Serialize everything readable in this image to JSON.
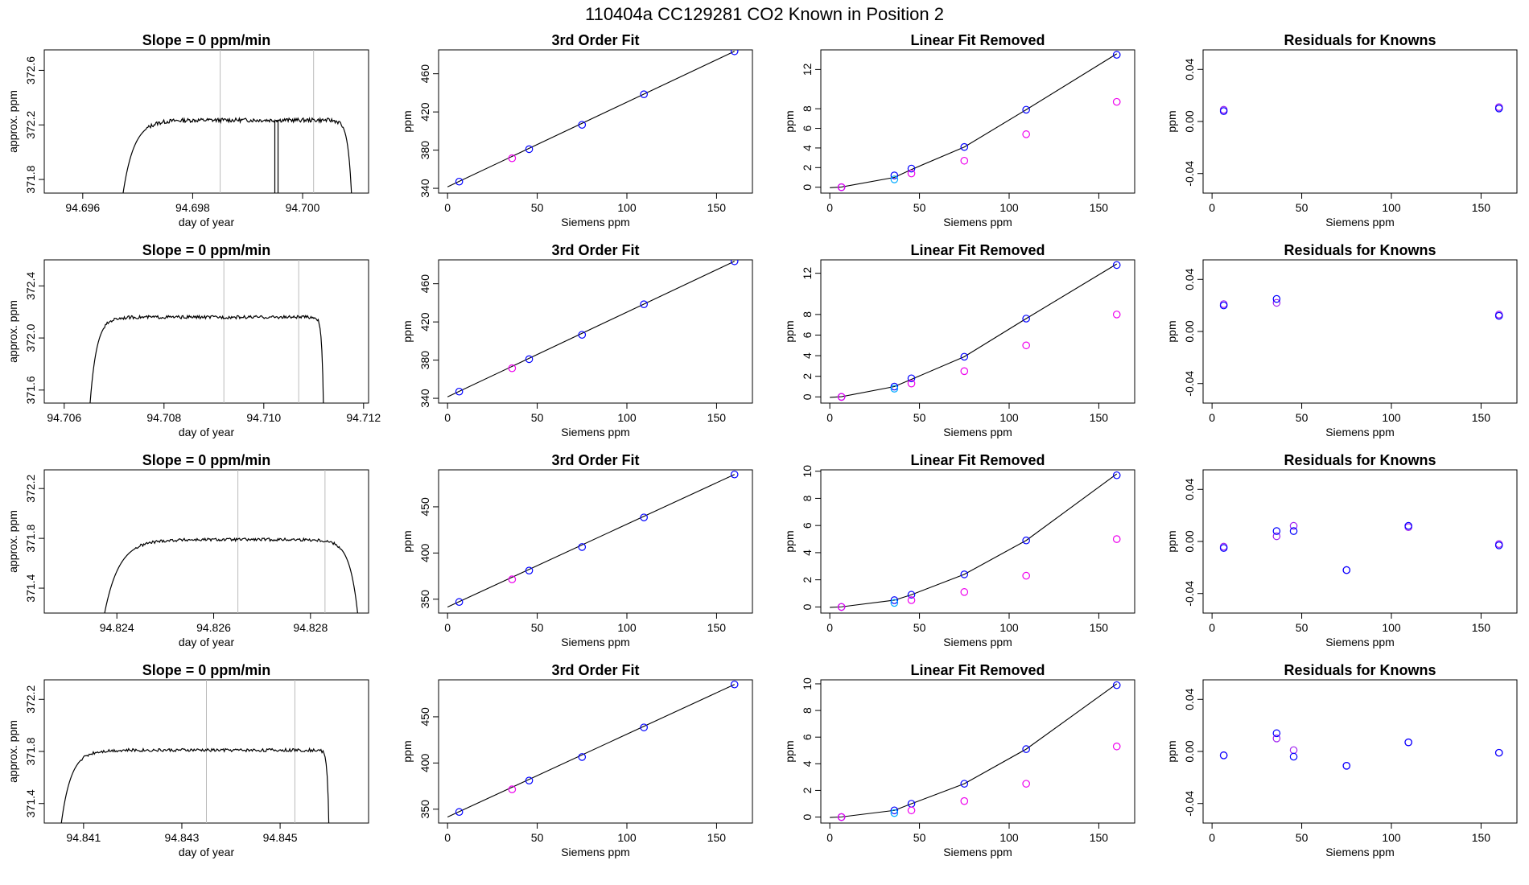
{
  "figure": {
    "title": "110404a      CC129281    CO2 Known in Position  2",
    "colors": {
      "line": "#000000",
      "vline": "#bbbbbb",
      "blue": "#0000ff",
      "violet": "#a020f0",
      "magenta": "#ee00ee",
      "cyan": "#00aaff",
      "purple": "#7a00ff",
      "red": "#ff0000"
    }
  },
  "chart_data": [
    {
      "type": "line",
      "row": 0,
      "col": 0,
      "title": "Slope =  0  ppm/min",
      "xlabel": "day of year",
      "ylabel": "approx. ppm",
      "xlim": [
        94.6953,
        94.7012
      ],
      "ylim": [
        371.7,
        372.75
      ],
      "xticks": [
        94.696,
        94.698,
        94.7
      ],
      "xticklabels": [
        "94.696",
        "94.698",
        "94.700"
      ],
      "yticks": [
        371.8,
        372.2,
        372.6
      ],
      "yticklabels": [
        "371.8",
        "372.2",
        "372.6"
      ],
      "vlines": [
        94.6985,
        94.7002
      ],
      "trace": {
        "x0": 94.6967,
        "x1": 94.7009,
        "rise": 0.0006,
        "fall": 0.0002,
        "level": 372.235,
        "start": 371.6,
        "end": 371.6,
        "noise": 0.015,
        "dip": 94.6995
      }
    },
    {
      "type": "scatter",
      "row": 0,
      "col": 1,
      "title": "3rd Order Fit",
      "xlabel": "Siemens ppm",
      "ylabel": "ppm",
      "xlim": [
        -5,
        170
      ],
      "ylim": [
        335,
        485
      ],
      "xticks": [
        0,
        50,
        100,
        150
      ],
      "xticklabels": [
        "0",
        "50",
        "100",
        "150"
      ],
      "yticks": [
        340,
        380,
        420,
        460
      ],
      "yticklabels": [
        "340",
        "380",
        "420",
        "460"
      ],
      "series": [
        {
          "color": "blue",
          "x": [
            6.5,
            45.5,
            75,
            109.5,
            160
          ],
          "y": [
            347,
            381,
            406.5,
            438.5,
            483.5
          ]
        },
        {
          "color": "magenta",
          "x": [
            36
          ],
          "y": [
            371.5
          ]
        }
      ],
      "fit": {
        "x": [
          0,
          160
        ],
        "y": [
          341.5,
          483.5
        ]
      }
    },
    {
      "type": "scatter",
      "row": 0,
      "col": 2,
      "title": "Linear Fit Removed",
      "xlabel": "Siemens ppm",
      "ylabel": "ppm",
      "xlim": [
        -5,
        170
      ],
      "ylim": [
        -0.6,
        14
      ],
      "xticks": [
        0,
        50,
        100,
        150
      ],
      "xticklabels": [
        "0",
        "50",
        "100",
        "150"
      ],
      "yticks": [
        0,
        2,
        4,
        6,
        8,
        12
      ],
      "yticklabels": [
        "0",
        "2",
        "4",
        "6",
        "8",
        "12"
      ],
      "series": [
        {
          "color": "blue",
          "x": [
            6.5,
            36,
            45.5,
            75,
            109.5,
            160
          ],
          "y": [
            0,
            1.2,
            1.9,
            4.1,
            7.9,
            13.5
          ]
        },
        {
          "color": "cyan",
          "x": [
            36
          ],
          "y": [
            0.8
          ]
        },
        {
          "color": "magenta",
          "x": [
            6.5,
            45.5,
            75,
            109.5,
            160
          ],
          "y": [
            0,
            1.4,
            2.7,
            5.4,
            8.7
          ]
        }
      ],
      "fit": {
        "x": [
          0,
          6.5,
          36,
          45.5,
          75,
          109.5,
          160
        ],
        "y": [
          -0.05,
          0.02,
          1.0,
          1.8,
          4.1,
          7.9,
          13.6
        ]
      }
    },
    {
      "type": "scatter",
      "row": 0,
      "col": 3,
      "title": "Residuals for Knowns",
      "xlabel": "Siemens ppm",
      "ylabel": "ppm",
      "xlim": [
        -5,
        170
      ],
      "ylim": [
        -0.055,
        0.055
      ],
      "xticks": [
        0,
        50,
        100,
        150
      ],
      "xticklabels": [
        "0",
        "50",
        "100",
        "150"
      ],
      "yticks": [
        -0.04,
        0.0,
        0.04
      ],
      "yticklabels": [
        "-0.04",
        "0.00",
        "0.04"
      ],
      "series": [
        {
          "color": "violet",
          "x": [
            6.5,
            160
          ],
          "y": [
            0.009,
            0.011
          ]
        },
        {
          "color": "blue",
          "x": [
            6.5,
            160
          ],
          "y": [
            0.008,
            0.01
          ]
        }
      ]
    },
    {
      "type": "line",
      "row": 1,
      "col": 0,
      "title": "Slope =  0  ppm/min",
      "xlabel": "day of year",
      "ylabel": "approx. ppm",
      "xlim": [
        94.7056,
        94.7121
      ],
      "ylim": [
        371.5,
        372.6
      ],
      "xticks": [
        94.706,
        94.708,
        94.71,
        94.712
      ],
      "xticklabels": [
        "94.706",
        "94.708",
        "94.710",
        "94.712"
      ],
      "yticks": [
        371.6,
        372.0,
        372.4
      ],
      "yticklabels": [
        "371.6",
        "372.0",
        "372.4"
      ],
      "vlines": [
        94.7092,
        94.7107
      ],
      "trace": {
        "x0": 94.7065,
        "x1": 94.7112,
        "rise": 0.0004,
        "fall": 0.0001,
        "level": 372.16,
        "start": 371.4,
        "end": 371.4,
        "noise": 0.012
      }
    },
    {
      "type": "scatter",
      "row": 1,
      "col": 1,
      "title": "3rd Order Fit",
      "xlabel": "Siemens ppm",
      "ylabel": "ppm",
      "xlim": [
        -5,
        170
      ],
      "ylim": [
        335,
        485
      ],
      "xticks": [
        0,
        50,
        100,
        150
      ],
      "xticklabels": [
        "0",
        "50",
        "100",
        "150"
      ],
      "yticks": [
        340,
        380,
        420,
        460
      ],
      "yticklabels": [
        "340",
        "380",
        "420",
        "460"
      ],
      "series": [
        {
          "color": "blue",
          "x": [
            6.5,
            45.5,
            75,
            109.5,
            160
          ],
          "y": [
            347,
            381,
            406.5,
            438.5,
            483.5
          ]
        },
        {
          "color": "magenta",
          "x": [
            36
          ],
          "y": [
            371.5
          ]
        }
      ],
      "fit": {
        "x": [
          0,
          160
        ],
        "y": [
          341.5,
          483.5
        ]
      }
    },
    {
      "type": "scatter",
      "row": 1,
      "col": 2,
      "title": "Linear Fit Removed",
      "xlabel": "Siemens ppm",
      "ylabel": "ppm",
      "xlim": [
        -5,
        170
      ],
      "ylim": [
        -0.6,
        13.3
      ],
      "xticks": [
        0,
        50,
        100,
        150
      ],
      "xticklabels": [
        "0",
        "50",
        "100",
        "150"
      ],
      "yticks": [
        0,
        2,
        4,
        6,
        8,
        12
      ],
      "yticklabels": [
        "0",
        "2",
        "4",
        "6",
        "8",
        "12"
      ],
      "series": [
        {
          "color": "blue",
          "x": [
            6.5,
            36,
            45.5,
            75,
            109.5,
            160
          ],
          "y": [
            0,
            1.0,
            1.8,
            3.9,
            7.6,
            12.8
          ]
        },
        {
          "color": "cyan",
          "x": [
            36
          ],
          "y": [
            0.8
          ]
        },
        {
          "color": "magenta",
          "x": [
            6.5,
            45.5,
            75,
            109.5,
            160
          ],
          "y": [
            0,
            1.3,
            2.5,
            5.0,
            8.0
          ]
        }
      ],
      "fit": {
        "x": [
          0,
          6.5,
          36,
          45.5,
          75,
          109.5,
          160
        ],
        "y": [
          -0.05,
          0.02,
          1.0,
          1.7,
          3.9,
          7.6,
          12.9
        ]
      }
    },
    {
      "type": "scatter",
      "row": 1,
      "col": 3,
      "title": "Residuals for Knowns",
      "xlabel": "Siemens ppm",
      "ylabel": "ppm",
      "xlim": [
        -5,
        170
      ],
      "ylim": [
        -0.055,
        0.055
      ],
      "xticks": [
        0,
        50,
        100,
        150
      ],
      "xticklabels": [
        "0",
        "50",
        "100",
        "150"
      ],
      "yticks": [
        -0.04,
        0.0,
        0.04
      ],
      "yticklabels": [
        "-0.04",
        "0.00",
        "0.04"
      ],
      "series": [
        {
          "color": "violet",
          "x": [
            6.5,
            36,
            160
          ],
          "y": [
            0.021,
            0.022,
            0.013
          ]
        },
        {
          "color": "blue",
          "x": [
            6.5,
            36,
            160
          ],
          "y": [
            0.02,
            0.025,
            0.012
          ]
        }
      ]
    },
    {
      "type": "line",
      "row": 2,
      "col": 0,
      "title": "Slope =  0  ppm/min",
      "xlabel": "day of year",
      "ylabel": "approx. ppm",
      "xlim": [
        94.8225,
        94.8292
      ],
      "ylim": [
        371.2,
        372.35
      ],
      "xticks": [
        94.824,
        94.826,
        94.828
      ],
      "xticklabels": [
        "94.824",
        "94.826",
        "94.828"
      ],
      "yticks": [
        371.4,
        371.8,
        372.2
      ],
      "yticklabels": [
        "371.4",
        "371.8",
        "372.2"
      ],
      "vlines": [
        94.8265,
        94.8283
      ],
      "trace": {
        "x0": 94.8237,
        "x1": 94.829,
        "rise": 0.0009,
        "fall": 0.0005,
        "level": 371.79,
        "start": 371.1,
        "end": 371.1,
        "noise": 0.012
      }
    },
    {
      "type": "scatter",
      "row": 2,
      "col": 1,
      "title": "3rd Order Fit",
      "xlabel": "Siemens ppm",
      "ylabel": "ppm",
      "xlim": [
        -5,
        170
      ],
      "ylim": [
        335,
        490
      ],
      "xticks": [
        0,
        50,
        100,
        150
      ],
      "xticklabels": [
        "0",
        "50",
        "100",
        "150"
      ],
      "yticks": [
        350,
        400,
        450
      ],
      "yticklabels": [
        "350",
        "400",
        "450"
      ],
      "series": [
        {
          "color": "blue",
          "x": [
            6.5,
            45.5,
            75,
            109.5,
            160
          ],
          "y": [
            347,
            381,
            406.5,
            438.5,
            485
          ]
        },
        {
          "color": "magenta",
          "x": [
            36
          ],
          "y": [
            371.5
          ]
        }
      ],
      "fit": {
        "x": [
          0,
          160
        ],
        "y": [
          341.5,
          485
        ]
      }
    },
    {
      "type": "scatter",
      "row": 2,
      "col": 2,
      "title": "Linear Fit Removed",
      "xlabel": "Siemens ppm",
      "ylabel": "ppm",
      "xlim": [
        -5,
        170
      ],
      "ylim": [
        -0.45,
        10.1
      ],
      "xticks": [
        0,
        50,
        100,
        150
      ],
      "xticklabels": [
        "0",
        "50",
        "100",
        "150"
      ],
      "yticks": [
        0,
        2,
        4,
        6,
        8,
        10
      ],
      "yticklabels": [
        "0",
        "2",
        "4",
        "6",
        "8",
        "10"
      ],
      "series": [
        {
          "color": "blue",
          "x": [
            6.5,
            36,
            45.5,
            75,
            109.5,
            160
          ],
          "y": [
            0,
            0.5,
            0.9,
            2.4,
            4.9,
            9.7
          ]
        },
        {
          "color": "cyan",
          "x": [
            36
          ],
          "y": [
            0.3
          ]
        },
        {
          "color": "magenta",
          "x": [
            6.5,
            45.5,
            75,
            109.5,
            160
          ],
          "y": [
            0,
            0.5,
            1.1,
            2.3,
            5.0
          ]
        }
      ],
      "fit": {
        "x": [
          0,
          6.5,
          36,
          45.5,
          75,
          109.5,
          160
        ],
        "y": [
          -0.03,
          0.01,
          0.5,
          0.9,
          2.4,
          4.9,
          9.8
        ]
      }
    },
    {
      "type": "scatter",
      "row": 2,
      "col": 3,
      "title": "Residuals for Knowns",
      "xlabel": "Siemens ppm",
      "ylabel": "ppm",
      "xlim": [
        -5,
        170
      ],
      "ylim": [
        -0.055,
        0.055
      ],
      "xticks": [
        0,
        50,
        100,
        150
      ],
      "xticklabels": [
        "0",
        "50",
        "100",
        "150"
      ],
      "yticks": [
        -0.04,
        0.0,
        0.04
      ],
      "yticklabels": [
        "-0.04",
        "0.00",
        "0.04"
      ],
      "series": [
        {
          "color": "violet",
          "x": [
            6.5,
            36,
            45.5,
            75,
            109.5,
            160
          ],
          "y": [
            -0.004,
            0.004,
            0.012,
            -0.022,
            0.011,
            -0.002
          ]
        },
        {
          "color": "blue",
          "x": [
            6.5,
            36,
            45.5,
            75,
            109.5,
            160
          ],
          "y": [
            -0.005,
            0.008,
            0.008,
            -0.022,
            0.012,
            -0.003
          ]
        }
      ]
    },
    {
      "type": "line",
      "row": 3,
      "col": 0,
      "title": "Slope =  0  ppm/min",
      "xlabel": "day of year",
      "ylabel": "approx. ppm",
      "xlim": [
        94.8402,
        94.8468
      ],
      "ylim": [
        371.25,
        372.35
      ],
      "xticks": [
        94.841,
        94.843,
        94.845
      ],
      "xticklabels": [
        "94.841",
        "94.843",
        "94.845"
      ],
      "yticks": [
        371.4,
        371.8,
        372.2
      ],
      "yticklabels": [
        "371.4",
        "371.8",
        "372.2"
      ],
      "vlines": [
        94.8435,
        94.8453
      ],
      "trace": {
        "x0": 94.8405,
        "x1": 94.846,
        "rise": 0.0006,
        "fall": 0.0001,
        "level": 371.81,
        "start": 371.1,
        "end": 371.1,
        "noise": 0.012
      }
    },
    {
      "type": "scatter",
      "row": 3,
      "col": 1,
      "title": "3rd Order Fit",
      "xlabel": "Siemens ppm",
      "ylabel": "ppm",
      "xlim": [
        -5,
        170
      ],
      "ylim": [
        335,
        490
      ],
      "xticks": [
        0,
        50,
        100,
        150
      ],
      "xticklabels": [
        "0",
        "50",
        "100",
        "150"
      ],
      "yticks": [
        350,
        400,
        450
      ],
      "yticklabels": [
        "350",
        "400",
        "450"
      ],
      "series": [
        {
          "color": "blue",
          "x": [
            6.5,
            45.5,
            75,
            109.5,
            160
          ],
          "y": [
            347,
            381,
            406.5,
            438.5,
            485
          ]
        },
        {
          "color": "magenta",
          "x": [
            36
          ],
          "y": [
            371.5
          ]
        }
      ],
      "fit": {
        "x": [
          0,
          160
        ],
        "y": [
          341.5,
          485
        ]
      }
    },
    {
      "type": "scatter",
      "row": 3,
      "col": 2,
      "title": "Linear Fit Removed",
      "xlabel": "Siemens ppm",
      "ylabel": "ppm",
      "xlim": [
        -5,
        170
      ],
      "ylim": [
        -0.45,
        10.3
      ],
      "xticks": [
        0,
        50,
        100,
        150
      ],
      "xticklabels": [
        "0",
        "50",
        "100",
        "150"
      ],
      "yticks": [
        0,
        2,
        4,
        6,
        8,
        10
      ],
      "yticklabels": [
        "0",
        "2",
        "4",
        "6",
        "8",
        "10"
      ],
      "series": [
        {
          "color": "blue",
          "x": [
            6.5,
            36,
            45.5,
            75,
            109.5,
            160
          ],
          "y": [
            0,
            0.5,
            1.0,
            2.5,
            5.1,
            9.9
          ]
        },
        {
          "color": "cyan",
          "x": [
            36
          ],
          "y": [
            0.3
          ]
        },
        {
          "color": "magenta",
          "x": [
            6.5,
            45.5,
            75,
            109.5,
            160
          ],
          "y": [
            0,
            0.5,
            1.2,
            2.5,
            5.3
          ]
        }
      ],
      "fit": {
        "x": [
          0,
          6.5,
          36,
          45.5,
          75,
          109.5,
          160
        ],
        "y": [
          -0.03,
          0.01,
          0.5,
          1.0,
          2.5,
          5.1,
          10.0
        ]
      }
    },
    {
      "type": "scatter",
      "row": 3,
      "col": 3,
      "title": "Residuals for Knowns",
      "xlabel": "Siemens ppm",
      "ylabel": "ppm",
      "xlim": [
        -5,
        170
      ],
      "ylim": [
        -0.055,
        0.055
      ],
      "xticks": [
        0,
        50,
        100,
        150
      ],
      "xticklabels": [
        "0",
        "50",
        "100",
        "150"
      ],
      "yticks": [
        -0.04,
        0.0,
        0.04
      ],
      "yticklabels": [
        "-0.04",
        "0.00",
        "0.04"
      ],
      "series": [
        {
          "color": "violet",
          "x": [
            6.5,
            36,
            45.5,
            75,
            109.5,
            160
          ],
          "y": [
            -0.003,
            0.01,
            0.001,
            -0.011,
            0.007,
            -0.001
          ]
        },
        {
          "color": "blue",
          "x": [
            6.5,
            36,
            45.5,
            75,
            109.5,
            160
          ],
          "y": [
            -0.003,
            0.014,
            -0.004,
            -0.011,
            0.007,
            -0.001
          ]
        }
      ]
    }
  ]
}
